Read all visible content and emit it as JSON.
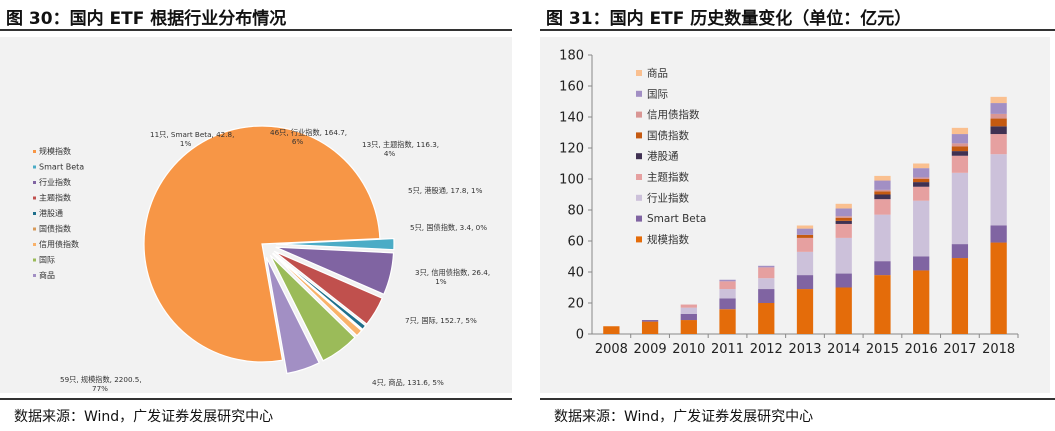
{
  "left": {
    "title": "图 30：国内 ETF 根据行业分布情况",
    "source": "数据来源：Wind，广发证券发展研究中心"
  },
  "right": {
    "title": "图 31：国内 ETF 历史数量变化（单位：亿元）",
    "source": "数据来源：Wind，广发证券发展研究中心"
  },
  "chart_data": [
    {
      "type": "pie",
      "legend_position": "left",
      "slices": [
        {
          "name": "规模指数",
          "count": "59只",
          "value": 2200.5,
          "percent": "77%",
          "color": "#f79646"
        },
        {
          "name": "Smart Beta",
          "count": "11只",
          "value": 42.8,
          "percent": "1%",
          "color": "#4bacc6"
        },
        {
          "name": "行业指数",
          "count": "46只",
          "value": 164.7,
          "percent": "6%",
          "color": "#8064a2"
        },
        {
          "name": "主题指数",
          "count": "13只",
          "value": 116.3,
          "percent": "4%",
          "color": "#c0504d"
        },
        {
          "name": "港股通",
          "count": "5只",
          "value": 17.8,
          "percent": "1%",
          "color": "#1f6f8b"
        },
        {
          "name": "国债指数",
          "count": "5只",
          "value": 3.4,
          "percent": "0%",
          "color": "#d79a5a"
        },
        {
          "name": "信用债指数",
          "count": "3只",
          "value": 26.4,
          "percent": "1%",
          "color": "#f9b26a"
        },
        {
          "name": "国际",
          "count": "7只",
          "value": 152.7,
          "percent": "5%",
          "color": "#9bbb59"
        },
        {
          "name": "商品",
          "count": "4只",
          "value": 131.6,
          "percent": "5%",
          "color": "#a28fc4"
        }
      ],
      "labels": [
        {
          "line1": "11只, Smart Beta, 42.8,",
          "line2": "1%"
        },
        {
          "line1": "46只, 行业指数, 164.7,",
          "line2": "6%"
        },
        {
          "line1": "13只, 主题指数, 116.3,",
          "line2": "4%"
        },
        {
          "line1": "5只, 港股通, 17.8, 1%",
          "line2": ""
        },
        {
          "line1": "5只, 国债指数, 3.4, 0%",
          "line2": ""
        },
        {
          "line1": "3只, 信用债指数, 26.4,",
          "line2": "1%"
        },
        {
          "line1": "7只, 国际, 152.7, 5%",
          "line2": ""
        },
        {
          "line1": "4只, 商品, 131.6, 5%",
          "line2": ""
        },
        {
          "line1": "59只, 规模指数, 2200.5,",
          "line2": "77%"
        }
      ],
      "legend": [
        "规模指数",
        "Smart Beta",
        "行业指数",
        "主题指数",
        "港股通",
        "国债指数",
        "信用债指数",
        "国际",
        "商品"
      ],
      "legend_colors": [
        "#f79646",
        "#4bacc6",
        "#8064a2",
        "#c0504d",
        "#1f6f8b",
        "#d79a5a",
        "#f9b26a",
        "#9bbb59",
        "#a28fc4"
      ]
    },
    {
      "type": "bar",
      "stacked": true,
      "legend_position": "top-left",
      "categories": [
        "2008",
        "2009",
        "2010",
        "2011",
        "2012",
        "2013",
        "2014",
        "2015",
        "2016",
        "2017",
        "2018"
      ],
      "ylim": [
        0,
        180
      ],
      "yticks": [
        0,
        20,
        40,
        60,
        80,
        100,
        120,
        140,
        160,
        180
      ],
      "grid": false,
      "series": [
        {
          "name": "规模指数",
          "color": "#e46c0a",
          "values": [
            5,
            8,
            9,
            16,
            20,
            29,
            30,
            38,
            41,
            49,
            59
          ]
        },
        {
          "name": "Smart Beta",
          "color": "#8064a2",
          "values": [
            0,
            1,
            4,
            7,
            9,
            9,
            9,
            9,
            9,
            9,
            11
          ]
        },
        {
          "name": "行业指数",
          "color": "#ccc1da",
          "values": [
            0,
            0,
            4,
            6,
            7,
            15,
            23,
            30,
            36,
            46,
            46
          ]
        },
        {
          "name": "主题指数",
          "color": "#e6a0a0",
          "values": [
            0,
            0,
            2,
            5,
            7,
            9,
            9,
            10,
            9,
            11,
            13
          ]
        },
        {
          "name": "港股通",
          "color": "#403152",
          "values": [
            0,
            0,
            0,
            0,
            0,
            0,
            2,
            3,
            3,
            3,
            5
          ]
        },
        {
          "name": "国债指数",
          "color": "#c55a11",
          "values": [
            0,
            0,
            0,
            0,
            0,
            2,
            2,
            2,
            2,
            3,
            5
          ]
        },
        {
          "name": "信用债指数",
          "color": "#d99694",
          "values": [
            0,
            0,
            0,
            0,
            0,
            0,
            1,
            1,
            1,
            2,
            3
          ]
        },
        {
          "name": "国际",
          "color": "#a28fc4",
          "values": [
            0,
            0,
            0,
            1,
            1,
            4,
            5,
            6,
            6,
            6,
            7
          ]
        },
        {
          "name": "商品",
          "color": "#fac090",
          "values": [
            0,
            0,
            0,
            0,
            0,
            2,
            3,
            3,
            3,
            4,
            4
          ]
        }
      ]
    }
  ]
}
